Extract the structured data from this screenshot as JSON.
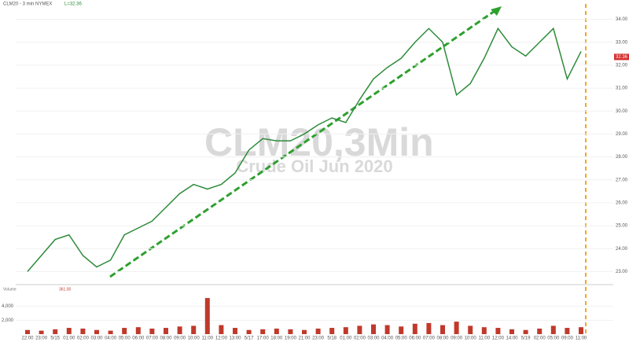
{
  "chart_data": {
    "type": "line",
    "title": "CLM20,3Min",
    "subtitle": "Crude Oil Jun 2020",
    "header": "CLM20 - 3 min NYMEX",
    "header_last": "L=32.36",
    "x": [
      "22:00",
      "23:00",
      "5/15",
      "01:00",
      "02:00",
      "03:00",
      "04:00",
      "05:00",
      "06:00",
      "07:00",
      "08:00",
      "09:00",
      "10:00",
      "11:00",
      "12:00",
      "13:00",
      "5/17",
      "17:00",
      "18:00",
      "19:00",
      "21:00",
      "23:00",
      "5/18",
      "01:00",
      "02:00",
      "03:00",
      "04:00",
      "05:00",
      "06:00",
      "07:00",
      "08:00",
      "09:00",
      "10:00",
      "11:00",
      "12:00",
      "14:00",
      "5/19",
      "02:00",
      "05:00",
      "09:00",
      "11:00"
    ],
    "series": [
      {
        "color": "#2e8b3a",
        "values": [
          23.0,
          23.7,
          24.4,
          24.6,
          23.7,
          23.2,
          23.5,
          24.6,
          24.9,
          25.2,
          25.8,
          26.4,
          26.8,
          26.6,
          26.8,
          27.3,
          28.3,
          28.8,
          28.7,
          28.7,
          29.0,
          29.4,
          29.7,
          29.5,
          30.5,
          31.4,
          31.9,
          32.3,
          33.0,
          33.6,
          33.0,
          30.7,
          31.2,
          32.3,
          33.6,
          32.8,
          32.4,
          33.0,
          33.6,
          31.4,
          32.6
        ]
      }
    ],
    "ylim": [
      22.5,
      34.5
    ],
    "yticks": [
      {
        "value": 23,
        "label": "23.00"
      },
      {
        "value": 24,
        "label": "24.00"
      },
      {
        "value": 25,
        "label": "25.00"
      },
      {
        "value": 26,
        "label": "26.00"
      },
      {
        "value": 27,
        "label": "27.00"
      },
      {
        "value": 28,
        "label": "28.00"
      },
      {
        "value": 29,
        "label": "29.00"
      },
      {
        "value": 30,
        "label": "30.00"
      },
      {
        "value": 31,
        "label": "31.00"
      },
      {
        "value": 32,
        "label": "32.00"
      },
      {
        "value": 33,
        "label": "33.00"
      },
      {
        "value": 34,
        "label": "34.00"
      }
    ],
    "last_price": 32.36,
    "volume": {
      "label": "Volume",
      "last": {
        "value": 361,
        "label": "361.00"
      },
      "color": "#c0392b",
      "ylim": [
        0,
        6000
      ],
      "yticks": [
        {
          "value": 2000,
          "label": "2,000"
        },
        {
          "value": 4000,
          "label": "4,000"
        }
      ],
      "values": [
        600,
        500,
        700,
        900,
        800,
        600,
        500,
        900,
        1000,
        800,
        900,
        1100,
        1200,
        5200,
        1300,
        900,
        600,
        700,
        800,
        700,
        600,
        800,
        900,
        1000,
        1200,
        1400,
        1300,
        1100,
        1500,
        1600,
        1300,
        1800,
        1200,
        1000,
        900,
        700,
        600,
        800,
        1200,
        900,
        1000
      ]
    }
  }
}
